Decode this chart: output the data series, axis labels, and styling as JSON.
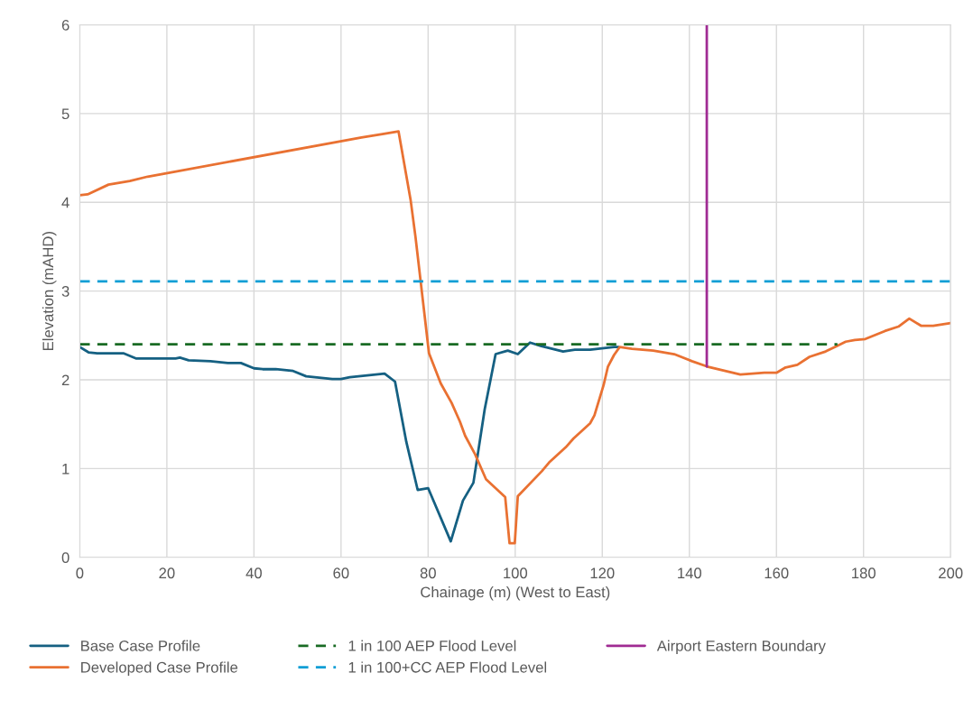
{
  "chart_data": {
    "type": "line",
    "xlabel": "Chainage (m) (West to East)",
    "ylabel": "Elevation (mAHD)",
    "xlim": [
      0,
      200
    ],
    "xticks": [
      0,
      20,
      40,
      60,
      80,
      100,
      120,
      140,
      160,
      180,
      200
    ],
    "ylim": [
      0,
      6
    ],
    "yticks": [
      0,
      1,
      2,
      3,
      4,
      5,
      6
    ],
    "grid": true,
    "legend": "bottom",
    "marker": "none",
    "series": [
      {
        "name": "Base Case Profile",
        "color": "#156082",
        "line_style": "solid",
        "x": [
          0,
          2,
          4,
          10,
          13,
          22,
          23,
          25,
          30,
          34,
          37,
          40,
          42,
          45,
          49,
          52,
          58,
          60,
          62,
          70,
          72.4,
          75,
          77.6,
          80,
          85.2,
          88,
          90.4,
          93,
          95.5,
          98.3,
          100.6,
          103.4,
          106,
          111,
          113.7,
          117.2,
          122.7,
          123.7
        ],
        "values": [
          2.37,
          2.31,
          2.3,
          2.3,
          2.24,
          2.24,
          2.25,
          2.22,
          2.21,
          2.19,
          2.19,
          2.13,
          2.12,
          2.12,
          2.1,
          2.04,
          2.01,
          2.01,
          2.03,
          2.07,
          1.98,
          1.3,
          0.76,
          0.78,
          0.18,
          0.64,
          0.84,
          1.67,
          2.29,
          2.33,
          2.29,
          2.42,
          2.38,
          2.32,
          2.34,
          2.34,
          2.37,
          2.37
        ]
      },
      {
        "name": "Developed Case Profile",
        "color": "#e97132",
        "line_style": "solid",
        "x": [
          0,
          1.8,
          6.6,
          11.5,
          15.6,
          19,
          64.7,
          69.5,
          73.2,
          76,
          77.1,
          80.2,
          82.9,
          85.4,
          87.3,
          88.5,
          90.8,
          93.3,
          97.7,
          98.7,
          99.9,
          100.6,
          106.1,
          107.8,
          111.6,
          113.4,
          117.2,
          118.2,
          120.3,
          121.3,
          122.7,
          124,
          126.8,
          131.7,
          136.5,
          140.6,
          144.1,
          151.7,
          154.5,
          157.2,
          160,
          162.1,
          164.8,
          167.6,
          171.3,
          173.8,
          175.9,
          178,
          180.4,
          184.9,
          188,
          190.5,
          193.2,
          196,
          200
        ],
        "values": [
          4.08,
          4.09,
          4.2,
          4.24,
          4.29,
          4.32,
          4.73,
          4.77,
          4.8,
          4.02,
          3.61,
          2.3,
          1.96,
          1.74,
          1.53,
          1.37,
          1.16,
          0.88,
          0.68,
          0.16,
          0.16,
          0.69,
          0.97,
          1.07,
          1.24,
          1.34,
          1.51,
          1.6,
          1.94,
          2.15,
          2.28,
          2.37,
          2.35,
          2.33,
          2.29,
          2.21,
          2.15,
          2.06,
          2.07,
          2.08,
          2.08,
          2.14,
          2.17,
          2.26,
          2.32,
          2.38,
          2.43,
          2.45,
          2.46,
          2.55,
          2.6,
          2.69,
          2.61,
          2.61,
          2.64
        ]
      },
      {
        "name": "1 in 100 AEP Flood Level",
        "color": "#196b24",
        "line_style": "dashed",
        "x": [
          0,
          174
        ],
        "values": [
          2.4,
          2.4
        ]
      },
      {
        "name": "1 in 100+CC AEP Flood Level",
        "color": "#0f9ed5",
        "line_style": "dashed",
        "x": [
          0,
          200
        ],
        "values": [
          3.11,
          3.11
        ]
      },
      {
        "name": "Airport Eastern Boundary",
        "color": "#a02b93",
        "line_style": "solid",
        "x": [
          144,
          144
        ],
        "values": [
          2.15,
          6
        ]
      }
    ]
  }
}
